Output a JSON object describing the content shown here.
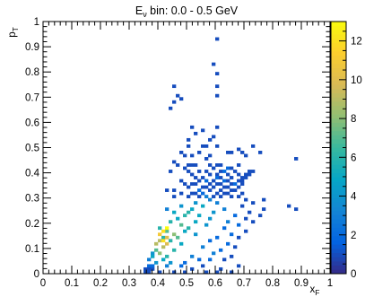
{
  "chart_data": {
    "type": "heatmap",
    "title": "E_ν bin:  0.0 -  0.5 GeV",
    "title_parts": {
      "base": "E",
      "sub": "ν",
      "rest": " bin:  0.0 -  0.5 GeV"
    },
    "xlabel": "x_F",
    "xlabel_parts": {
      "base": "x",
      "sub": "F"
    },
    "ylabel": "p_T",
    "ylabel_parts": {
      "base": "p",
      "sub": "T"
    },
    "xlim": [
      0,
      1
    ],
    "ylim": [
      0,
      1
    ],
    "zlim": [
      0,
      13
    ],
    "bin_width": [
      0.0125,
      0.0125
    ],
    "x_ticks": [
      "0",
      "0.1",
      "0.2",
      "0.3",
      "0.4",
      "0.5",
      "0.6",
      "0.7",
      "0.8",
      "0.9",
      "1"
    ],
    "y_ticks": [
      "0",
      "0.1",
      "0.2",
      "0.3",
      "0.4",
      "0.5",
      "0.6",
      "0.7",
      "0.8",
      "0.9",
      "1"
    ],
    "z_ticks": [
      "0",
      "2",
      "4",
      "6",
      "8",
      "10",
      "12"
    ],
    "grid": false,
    "colormap": "kBird",
    "colormap_stops": [
      "#352a87",
      "#0363e1",
      "#1485d4",
      "#06a7c6",
      "#38b99e",
      "#92bf73",
      "#d9ba56",
      "#fcce2e",
      "#f9fb0e"
    ],
    "bins": [
      [
        0.6063,
        0.9313,
        1
      ],
      [
        0.5938,
        0.8313,
        1
      ],
      [
        0.6063,
        0.7938,
        1
      ],
      [
        0.4563,
        0.7438,
        1
      ],
      [
        0.6063,
        0.7438,
        1
      ],
      [
        0.4688,
        0.7063,
        1
      ],
      [
        0.6063,
        0.7063,
        1
      ],
      [
        0.4813,
        0.6938,
        1
      ],
      [
        0.4563,
        0.6813,
        1
      ],
      [
        0.4438,
        0.6563,
        1
      ],
      [
        0.5188,
        0.5813,
        1
      ],
      [
        0.5313,
        0.5563,
        1
      ],
      [
        0.6063,
        0.5813,
        1
      ],
      [
        0.5563,
        0.5688,
        1
      ],
      [
        0.5938,
        0.5438,
        1
      ],
      [
        0.5063,
        0.5313,
        1
      ],
      [
        0.5813,
        0.5313,
        1
      ],
      [
        0.5563,
        0.5063,
        1
      ],
      [
        0.5688,
        0.5063,
        1
      ],
      [
        0.5063,
        0.5063,
        1
      ],
      [
        0.6063,
        0.5063,
        1
      ],
      [
        0.7313,
        0.5063,
        1
      ],
      [
        0.6813,
        0.4938,
        1
      ],
      [
        0.6438,
        0.4813,
        1
      ],
      [
        0.6563,
        0.4813,
        1
      ],
      [
        0.4813,
        0.4813,
        1
      ],
      [
        0.5438,
        0.4813,
        1
      ],
      [
        0.6938,
        0.4813,
        1
      ],
      [
        0.7563,
        0.4813,
        1
      ],
      [
        0.4938,
        0.4688,
        1
      ],
      [
        0.5188,
        0.4688,
        1
      ],
      [
        0.5813,
        0.4688,
        1
      ],
      [
        0.7063,
        0.4688,
        1
      ],
      [
        0.5688,
        0.4563,
        1
      ],
      [
        0.8813,
        0.4563,
        1
      ],
      [
        0.4563,
        0.4438,
        1
      ],
      [
        0.4688,
        0.4313,
        1
      ],
      [
        0.5063,
        0.4313,
        1
      ],
      [
        0.5188,
        0.4313,
        1
      ],
      [
        0.5313,
        0.4313,
        1
      ],
      [
        0.5813,
        0.4313,
        1
      ],
      [
        0.6063,
        0.4313,
        1
      ],
      [
        0.6188,
        0.4313,
        1
      ],
      [
        0.6813,
        0.4313,
        1
      ],
      [
        0.4938,
        0.4188,
        1
      ],
      [
        0.5938,
        0.4188,
        1
      ],
      [
        0.6438,
        0.4188,
        2
      ],
      [
        0.6563,
        0.4188,
        1
      ],
      [
        0.4438,
        0.4063,
        1
      ],
      [
        0.5063,
        0.4063,
        1
      ],
      [
        0.5438,
        0.4063,
        1
      ],
      [
        0.5688,
        0.4063,
        1
      ],
      [
        0.6188,
        0.4063,
        1
      ],
      [
        0.6313,
        0.4063,
        2
      ],
      [
        0.6688,
        0.4063,
        1
      ],
      [
        0.7188,
        0.4063,
        1
      ],
      [
        0.7313,
        0.4063,
        1
      ],
      [
        0.5188,
        0.3938,
        1
      ],
      [
        0.5813,
        0.3938,
        1
      ],
      [
        0.6063,
        0.3938,
        1
      ],
      [
        0.6438,
        0.3938,
        1
      ],
      [
        0.6813,
        0.3938,
        1
      ],
      [
        0.7063,
        0.3938,
        1
      ],
      [
        0.7188,
        0.3938,
        1
      ],
      [
        0.5313,
        0.3813,
        1
      ],
      [
        0.5563,
        0.3813,
        1
      ],
      [
        0.6063,
        0.3813,
        2
      ],
      [
        0.6188,
        0.3813,
        1
      ],
      [
        0.6563,
        0.3813,
        1
      ],
      [
        0.6938,
        0.3813,
        1
      ],
      [
        0.7063,
        0.3813,
        1
      ],
      [
        0.4813,
        0.3688,
        1
      ],
      [
        0.5438,
        0.3688,
        1
      ],
      [
        0.5688,
        0.3688,
        2
      ],
      [
        0.5938,
        0.3688,
        1
      ],
      [
        0.6313,
        0.3688,
        2
      ],
      [
        0.6438,
        0.3688,
        1
      ],
      [
        0.6813,
        0.3688,
        1
      ],
      [
        0.6938,
        0.3688,
        1
      ],
      [
        0.4938,
        0.3563,
        1
      ],
      [
        0.5188,
        0.3563,
        1
      ],
      [
        0.5313,
        0.3563,
        1
      ],
      [
        0.5813,
        0.3563,
        1
      ],
      [
        0.6063,
        0.3563,
        1
      ],
      [
        0.6188,
        0.3563,
        1
      ],
      [
        0.6563,
        0.3563,
        1
      ],
      [
        0.6688,
        0.3563,
        2
      ],
      [
        0.6938,
        0.3563,
        1
      ],
      [
        0.5063,
        0.3438,
        1
      ],
      [
        0.5563,
        0.3438,
        1
      ],
      [
        0.5688,
        0.3438,
        1
      ],
      [
        0.5938,
        0.3438,
        1
      ],
      [
        0.6313,
        0.3438,
        1
      ],
      [
        0.6438,
        0.3438,
        1
      ],
      [
        0.6813,
        0.3438,
        1
      ],
      [
        0.4313,
        0.3313,
        1
      ],
      [
        0.4563,
        0.3313,
        1
      ],
      [
        0.5438,
        0.3313,
        2
      ],
      [
        0.5813,
        0.3313,
        1
      ],
      [
        0.6188,
        0.3313,
        1
      ],
      [
        0.6563,
        0.3313,
        1
      ],
      [
        0.6688,
        0.3313,
        1
      ],
      [
        0.4813,
        0.3188,
        1
      ],
      [
        0.5188,
        0.3188,
        1
      ],
      [
        0.5313,
        0.3188,
        1
      ],
      [
        0.5563,
        0.3188,
        2
      ],
      [
        0.6063,
        0.3188,
        1
      ],
      [
        0.6313,
        0.3188,
        1
      ],
      [
        0.6438,
        0.3188,
        1
      ],
      [
        0.6938,
        0.3188,
        1
      ],
      [
        0.4563,
        0.3063,
        1
      ],
      [
        0.5063,
        0.3063,
        1
      ],
      [
        0.5438,
        0.3063,
        1
      ],
      [
        0.5938,
        0.3063,
        1
      ],
      [
        0.6188,
        0.3063,
        1
      ],
      [
        0.6563,
        0.3063,
        1
      ],
      [
        0.6813,
        0.3063,
        1
      ],
      [
        0.5688,
        0.3063,
        3
      ],
      [
        0.5813,
        0.2938,
        3
      ],
      [
        0.5313,
        0.2813,
        4
      ],
      [
        0.6063,
        0.2813,
        3
      ],
      [
        0.4813,
        0.2688,
        4
      ],
      [
        0.5563,
        0.2688,
        5
      ],
      [
        0.4313,
        0.2563,
        3
      ],
      [
        0.5188,
        0.2563,
        5
      ],
      [
        0.6313,
        0.2563,
        3
      ],
      [
        0.4563,
        0.2438,
        5
      ],
      [
        0.5063,
        0.2438,
        6
      ],
      [
        0.5938,
        0.2438,
        4
      ],
      [
        0.4938,
        0.2313,
        6
      ],
      [
        0.5438,
        0.2313,
        5
      ],
      [
        0.4688,
        0.2188,
        5
      ],
      [
        0.5813,
        0.2188,
        4
      ],
      [
        0.4438,
        0.2063,
        6
      ],
      [
        0.5313,
        0.2063,
        5
      ],
      [
        0.4813,
        0.1938,
        7
      ],
      [
        0.5688,
        0.1938,
        4
      ],
      [
        0.4063,
        0.1813,
        6
      ],
      [
        0.5063,
        0.1813,
        6
      ],
      [
        0.4313,
        0.1688,
        7
      ],
      [
        0.4938,
        0.1688,
        5
      ],
      [
        0.4563,
        0.1563,
        8
      ],
      [
        0.5313,
        0.1563,
        4
      ],
      [
        0.4188,
        0.1438,
        6
      ],
      [
        0.4688,
        0.1438,
        7
      ],
      [
        0.4063,
        0.1313,
        9
      ],
      [
        0.4438,
        0.1313,
        6
      ],
      [
        0.4313,
        0.1188,
        10
      ],
      [
        0.4813,
        0.1188,
        5
      ],
      [
        0.4188,
        0.1063,
        9
      ],
      [
        0.3938,
        0.0938,
        7
      ],
      [
        0.4563,
        0.0938,
        6
      ],
      [
        0.4063,
        0.0813,
        8
      ],
      [
        0.4313,
        0.0688,
        6
      ],
      [
        0.3813,
        0.0688,
        5
      ],
      [
        0.4188,
        0.0563,
        5
      ],
      [
        0.4438,
        0.0438,
        4
      ],
      [
        0.3938,
        0.0438,
        4
      ],
      [
        0.4313,
        0.0313,
        3
      ],
      [
        0.4313,
        0.1813,
        13
      ],
      [
        0.4188,
        0.1688,
        12
      ],
      [
        0.4063,
        0.1563,
        11
      ],
      [
        0.4188,
        0.1313,
        12
      ],
      [
        0.4313,
        0.1438,
        10
      ],
      [
        0.3938,
        0.1188,
        9
      ],
      [
        0.3813,
        0.0813,
        4
      ],
      [
        0.3688,
        0.0563,
        3
      ],
      [
        0.3688,
        0.0313,
        2
      ],
      [
        0.3688,
        0.0188,
        1
      ],
      [
        0.3813,
        0.0188,
        1
      ],
      [
        0.4063,
        0.0063,
        1
      ],
      [
        0.4563,
        0.0063,
        1
      ],
      [
        0.4938,
        0.0063,
        1
      ],
      [
        0.5688,
        0.0063,
        1
      ],
      [
        0.6063,
        0.0063,
        1
      ],
      [
        0.6563,
        0.0063,
        1
      ],
      [
        0.6188,
        0.0188,
        1
      ],
      [
        0.5188,
        0.0188,
        1
      ],
      [
        0.5563,
        0.0313,
        1
      ],
      [
        0.6813,
        0.0313,
        1
      ],
      [
        0.4813,
        0.0313,
        2
      ],
      [
        0.4938,
        0.0438,
        2
      ],
      [
        0.5438,
        0.0563,
        2
      ],
      [
        0.5813,
        0.0563,
        2
      ],
      [
        0.6313,
        0.0563,
        1
      ],
      [
        0.6563,
        0.0688,
        1
      ],
      [
        0.5188,
        0.0688,
        3
      ],
      [
        0.5938,
        0.0813,
        3
      ],
      [
        0.6188,
        0.0938,
        2
      ],
      [
        0.6688,
        0.1063,
        1
      ],
      [
        0.6438,
        0.1188,
        2
      ],
      [
        0.5563,
        0.1063,
        3
      ],
      [
        0.5813,
        0.1313,
        2
      ],
      [
        0.6063,
        0.1438,
        2
      ],
      [
        0.6813,
        0.1438,
        1
      ],
      [
        0.6563,
        0.1563,
        2
      ],
      [
        0.7063,
        0.1688,
        1
      ],
      [
        0.6313,
        0.1813,
        2
      ],
      [
        0.6813,
        0.1938,
        2
      ],
      [
        0.7313,
        0.2063,
        1
      ],
      [
        0.6438,
        0.2063,
        3
      ],
      [
        0.7063,
        0.2188,
        1
      ],
      [
        0.6688,
        0.2313,
        2
      ],
      [
        0.7188,
        0.2438,
        1
      ],
      [
        0.7563,
        0.2313,
        1
      ],
      [
        0.7688,
        0.2563,
        1
      ],
      [
        0.6938,
        0.2688,
        1
      ],
      [
        0.7313,
        0.2813,
        1
      ],
      [
        0.7063,
        0.2938,
        1
      ],
      [
        0.7688,
        0.2938,
        1
      ],
      [
        0.8563,
        0.2688,
        1
      ],
      [
        0.8813,
        0.2563,
        1
      ],
      [
        0.3563,
        0.0063,
        1
      ],
      [
        0.3563,
        0.0188,
        1
      ],
      [
        0.3688,
        0.0063,
        1
      ],
      [
        0.3813,
        0.0313,
        2
      ]
    ]
  }
}
